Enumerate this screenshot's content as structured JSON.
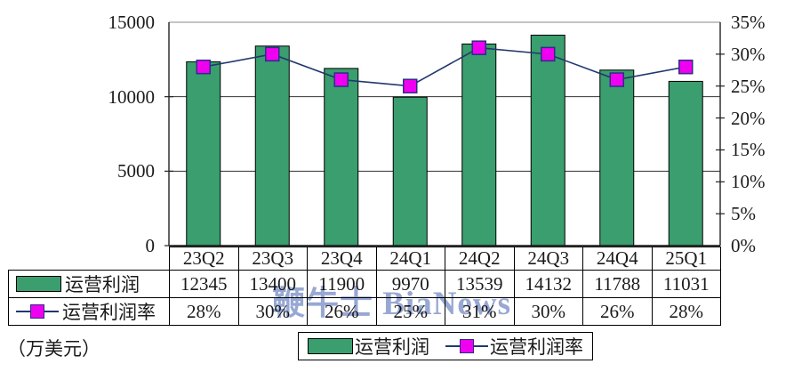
{
  "watermark": {
    "text": "鞭牛士 BiaNews",
    "color": "#7b8fc7"
  },
  "unit_label": "（万美元）",
  "chart_data": {
    "type": "combo bar+line with data table",
    "categories": [
      "23Q2",
      "23Q3",
      "23Q4",
      "24Q1",
      "24Q2",
      "24Q3",
      "24Q4",
      "25Q1"
    ],
    "series": [
      {
        "name": "运营利润",
        "type": "bar",
        "axis": "left",
        "color": "#3a9e6e",
        "border_color": "#000000",
        "values": [
          12345,
          13400,
          11900,
          9970,
          13539,
          14132,
          11788,
          11031
        ]
      },
      {
        "name": "运营利润率",
        "type": "line",
        "axis": "right",
        "line_color": "#21386e",
        "marker_color": "#f000f0",
        "marker_border_color": "#2d2d86",
        "values": [
          28,
          30,
          26,
          25,
          31,
          30,
          26,
          28
        ],
        "labels": [
          "28%",
          "30%",
          "26%",
          "25%",
          "31%",
          "30%",
          "26%",
          "28%"
        ]
      }
    ],
    "left_axis": {
      "unit": "万美元",
      "min": 0,
      "max": 15000,
      "tick_step": 5000,
      "tick_labels": [
        "0",
        "5000",
        "10000",
        "15000"
      ]
    },
    "right_axis": {
      "min": 0,
      "max": 35,
      "tick_step": 5,
      "tick_labels": [
        "0%",
        "5%",
        "10%",
        "15%",
        "20%",
        "25%",
        "30%",
        "35%"
      ]
    },
    "gridlines": "horizontal lines at left-axis ticks",
    "legend_position": "bottom",
    "data_table_shown": true
  }
}
